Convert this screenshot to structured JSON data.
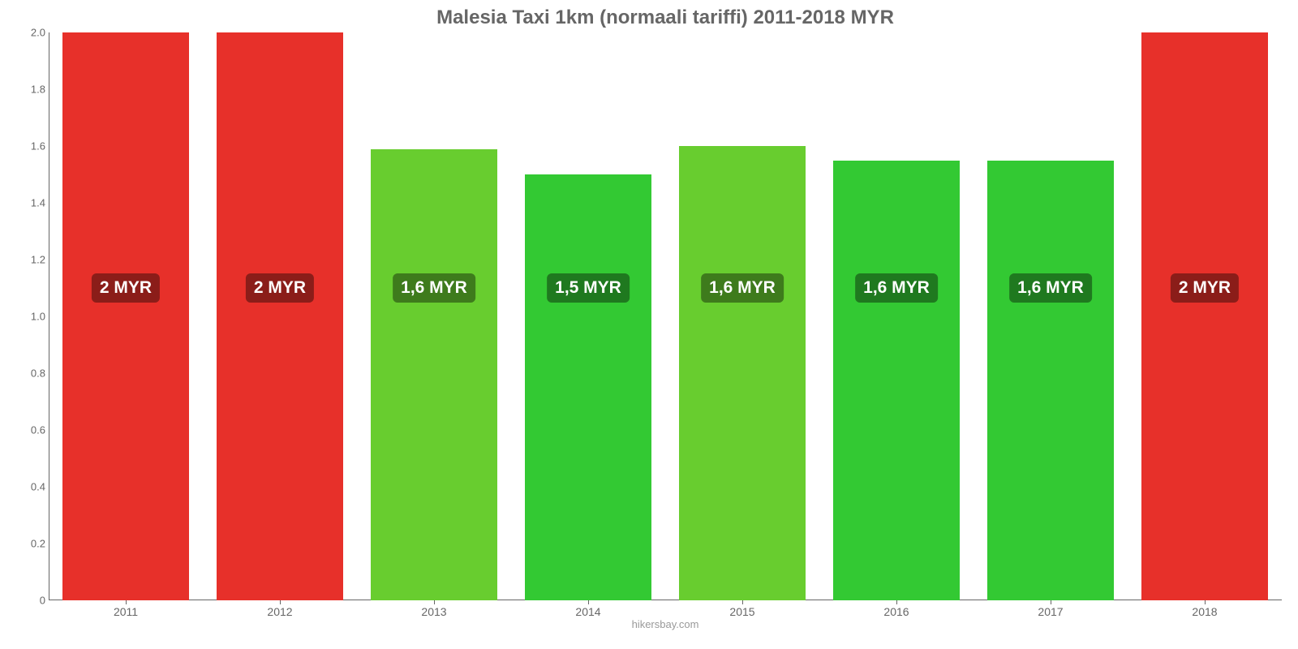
{
  "chart": {
    "type": "bar",
    "title": "Malesia Taxi 1km (normaali tariffi) 2011-2018 MYR",
    "title_color": "#666666",
    "title_fontsize": 24,
    "footer": "hikersbay.com",
    "background_color": "#ffffff",
    "axis_color": "#666666",
    "axis_label_color": "#666666",
    "axis_fontsize": 13,
    "ylim": [
      0,
      2.0
    ],
    "yticks": [
      0,
      0.2,
      0.4,
      0.6,
      0.8,
      1.0,
      1.2,
      1.4,
      1.6,
      1.8,
      2.0
    ],
    "ytick_labels": [
      "0",
      "0.2",
      "0.4",
      "0.6",
      "0.8",
      "1.0",
      "1.2",
      "1.4",
      "1.6",
      "1.8",
      "2.0"
    ],
    "bar_width_pct": 82,
    "label_badge_y_value": 1.1,
    "label_fontsize": 21,
    "label_text_color": "#ffffff",
    "bars": [
      {
        "category": "2011",
        "value": 2.0,
        "label": "2 MYR",
        "color": "#e7302a",
        "badge_bg": "#8b1d19"
      },
      {
        "category": "2012",
        "value": 2.0,
        "label": "2 MYR",
        "color": "#e7302a",
        "badge_bg": "#8b1d19"
      },
      {
        "category": "2013",
        "value": 1.59,
        "label": "1,6 MYR",
        "color": "#68cd2f",
        "badge_bg": "#3e7b1c"
      },
      {
        "category": "2014",
        "value": 1.5,
        "label": "1,5 MYR",
        "color": "#33c933",
        "badge_bg": "#1f791f"
      },
      {
        "category": "2015",
        "value": 1.6,
        "label": "1,6 MYR",
        "color": "#68cd2f",
        "badge_bg": "#3e7b1c"
      },
      {
        "category": "2016",
        "value": 1.55,
        "label": "1,6 MYR",
        "color": "#33c933",
        "badge_bg": "#1f791f"
      },
      {
        "category": "2017",
        "value": 1.55,
        "label": "1,6 MYR",
        "color": "#33c933",
        "badge_bg": "#1f791f"
      },
      {
        "category": "2018",
        "value": 2.0,
        "label": "2 MYR",
        "color": "#e7302a",
        "badge_bg": "#8b1d19"
      }
    ]
  }
}
